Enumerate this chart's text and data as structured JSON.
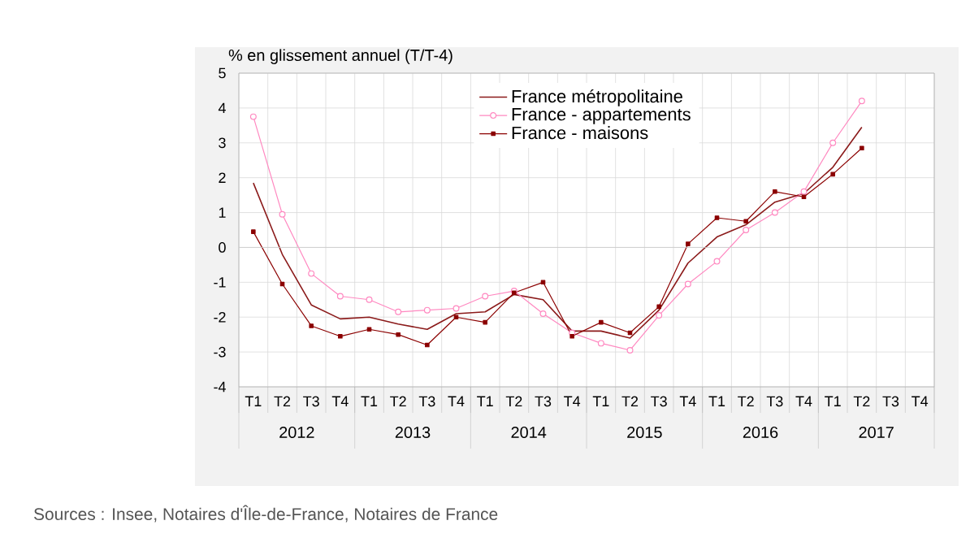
{
  "chart_data": {
    "type": "line",
    "ylabel": "% en glissement annuel (T/T-4)",
    "categories": [
      "T1",
      "T2",
      "T3",
      "T4",
      "T1",
      "T2",
      "T3",
      "T4",
      "T1",
      "T2",
      "T3",
      "T4",
      "T1",
      "T2",
      "T3",
      "T4",
      "T1",
      "T2",
      "T3",
      "T4",
      "T1",
      "T2",
      "T3",
      "T4"
    ],
    "annotations": [
      "2012",
      "2013",
      "2014",
      "2015",
      "2016",
      "2017",
      "Sources : Insee, Notaires d'Île-de-France, Notaires de France"
    ],
    "series": [
      {
        "name": "France métropolitaine",
        "color": "#8b1a1a",
        "marker": "none",
        "values": [
          1.85,
          -0.2,
          -1.65,
          -2.05,
          -2.0,
          -2.2,
          -2.35,
          -1.9,
          -1.85,
          -1.35,
          -1.5,
          -2.4,
          -2.4,
          -2.6,
          -1.8,
          -0.45,
          0.3,
          0.65,
          1.3,
          1.55,
          2.3,
          3.45,
          null,
          null
        ]
      },
      {
        "name": "France - appartements",
        "color": "#ff88c0",
        "marker": "circle",
        "values": [
          3.75,
          0.95,
          -0.75,
          -1.4,
          -1.5,
          -1.85,
          -1.8,
          -1.75,
          -1.4,
          -1.25,
          -1.9,
          -2.45,
          -2.75,
          -2.95,
          -1.95,
          -1.05,
          -0.4,
          0.5,
          1.0,
          1.6,
          3.0,
          4.2,
          null,
          null
        ]
      },
      {
        "name": "France - maisons",
        "color": "#8b0000",
        "marker": "square",
        "values": [
          0.45,
          -1.05,
          -2.25,
          -2.55,
          -2.35,
          -2.5,
          -2.8,
          -2.0,
          -2.15,
          -1.3,
          -1.0,
          -2.55,
          -2.15,
          -2.45,
          -1.7,
          0.1,
          0.85,
          0.75,
          1.6,
          1.45,
          2.1,
          2.85,
          null,
          null
        ]
      }
    ],
    "ylim": [
      -4,
      5
    ],
    "yticks": [
      -4,
      -3,
      -2,
      -1,
      0,
      1,
      2,
      3,
      4,
      5
    ],
    "grid": true,
    "legend": "top",
    "line_style": "solid"
  }
}
